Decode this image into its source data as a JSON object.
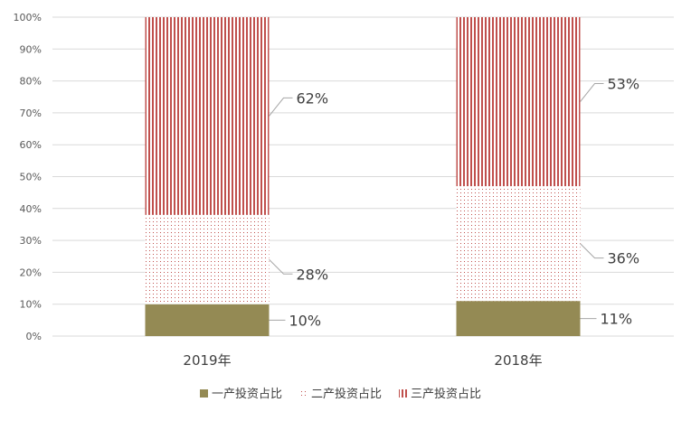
{
  "chart_data": {
    "type": "bar",
    "stacked": true,
    "percent": true,
    "categories": [
      "2019年",
      "2018年"
    ],
    "series": [
      {
        "name": "一产投资占比",
        "values": [
          10,
          11
        ],
        "labels": [
          "10%",
          "11%"
        ],
        "color": "#948a54",
        "pattern": "solid"
      },
      {
        "name": "二产投资占比",
        "values": [
          28,
          36
        ],
        "labels": [
          "28%",
          "36%"
        ],
        "color": "#c0504d",
        "pattern": "dots"
      },
      {
        "name": "三产投资占比",
        "values": [
          62,
          53
        ],
        "labels": [
          "62%",
          "53%"
        ],
        "color": "#c0504d",
        "pattern": "vertical-stripes"
      }
    ],
    "yticks": [
      "0%",
      "10%",
      "20%",
      "30%",
      "40%",
      "50%",
      "60%",
      "70%",
      "80%",
      "90%",
      "100%"
    ],
    "ylim": [
      0,
      100
    ],
    "grid": true,
    "legend_position": "bottom",
    "title": "",
    "xlabel": "",
    "ylabel": ""
  }
}
